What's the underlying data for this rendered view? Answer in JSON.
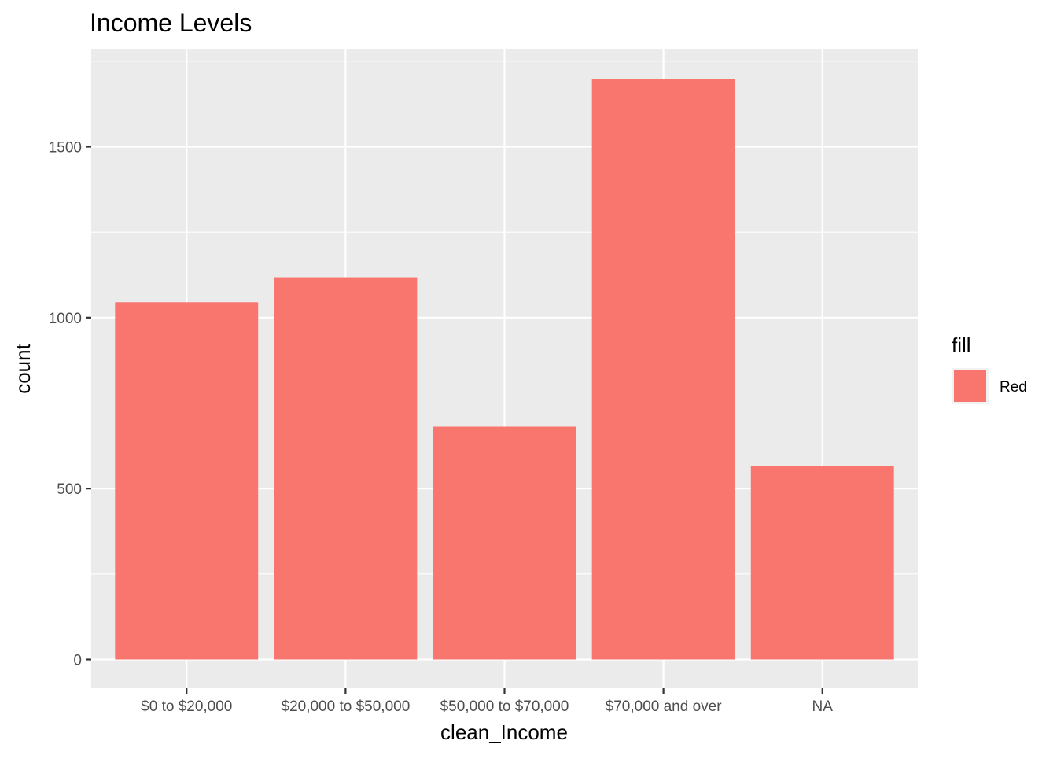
{
  "chart_data": {
    "type": "bar",
    "title": "Income Levels",
    "xlabel": "clean_Income",
    "ylabel": "count",
    "categories": [
      "$0 to $20,000",
      "$20,000 to $50,000",
      "$50,000 to $70,000",
      "$70,000 and over",
      "NA"
    ],
    "values": [
      1045,
      1118,
      681,
      1697,
      566
    ],
    "ylim": [
      0,
      1800
    ],
    "yticks": [
      0,
      500,
      1000,
      1500
    ],
    "ytick_labels": [
      "0",
      "500",
      "1000",
      "1500"
    ],
    "grid": true,
    "legend": {
      "title": "fill",
      "entries": [
        {
          "label": "Red",
          "color": "#F8766D"
        }
      ],
      "placement": "right"
    },
    "colors": {
      "bar": "#F8766D",
      "panel": "#EBEBEB",
      "grid": "#FFFFFF"
    }
  }
}
